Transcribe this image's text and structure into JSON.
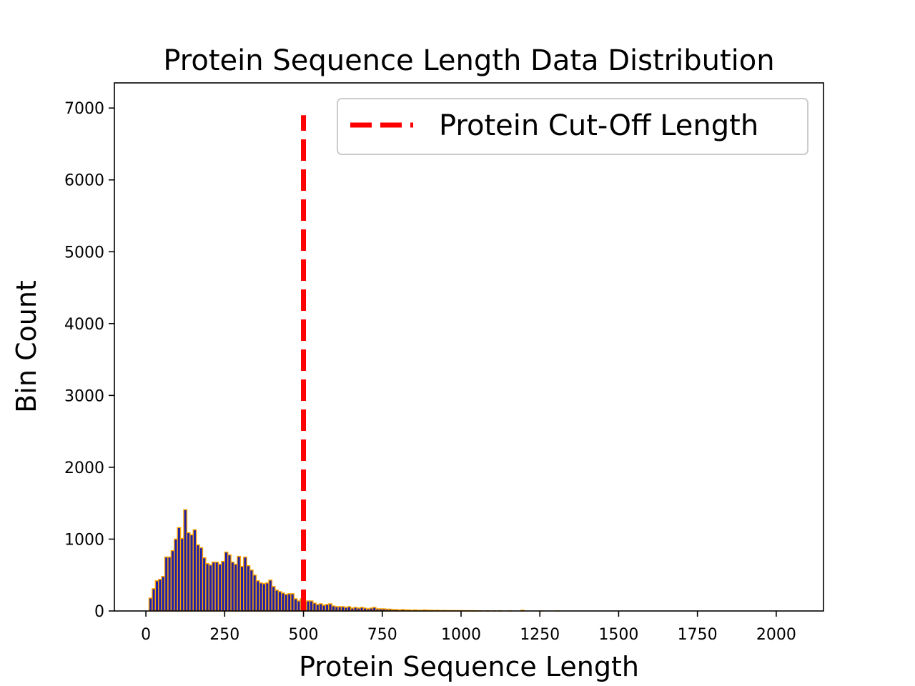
{
  "chart_data": {
    "type": "bar",
    "title": "Protein Sequence Length Data Distribution",
    "xlabel": "Protein Sequence Length",
    "ylabel": "Bin Count",
    "xlim": [
      -100,
      2150
    ],
    "ylim": [
      0,
      7350
    ],
    "xticks": [
      0,
      250,
      500,
      750,
      1000,
      1250,
      1500,
      1750,
      2000
    ],
    "yticks": [
      0,
      1000,
      2000,
      3000,
      4000,
      5000,
      6000,
      7000
    ],
    "bin_width": 10,
    "bins": [
      {
        "x": 10,
        "count": 180
      },
      {
        "x": 20,
        "count": 310
      },
      {
        "x": 30,
        "count": 420
      },
      {
        "x": 40,
        "count": 440
      },
      {
        "x": 50,
        "count": 480
      },
      {
        "x": 60,
        "count": 750
      },
      {
        "x": 70,
        "count": 750
      },
      {
        "x": 80,
        "count": 840
      },
      {
        "x": 90,
        "count": 1000
      },
      {
        "x": 100,
        "count": 1160
      },
      {
        "x": 110,
        "count": 1010
      },
      {
        "x": 120,
        "count": 1410
      },
      {
        "x": 130,
        "count": 1090
      },
      {
        "x": 140,
        "count": 1060
      },
      {
        "x": 150,
        "count": 1130
      },
      {
        "x": 160,
        "count": 920
      },
      {
        "x": 170,
        "count": 880
      },
      {
        "x": 180,
        "count": 740
      },
      {
        "x": 190,
        "count": 660
      },
      {
        "x": 200,
        "count": 640
      },
      {
        "x": 210,
        "count": 680
      },
      {
        "x": 220,
        "count": 680
      },
      {
        "x": 230,
        "count": 650
      },
      {
        "x": 240,
        "count": 690
      },
      {
        "x": 250,
        "count": 820
      },
      {
        "x": 260,
        "count": 780
      },
      {
        "x": 270,
        "count": 680
      },
      {
        "x": 280,
        "count": 650
      },
      {
        "x": 290,
        "count": 760
      },
      {
        "x": 300,
        "count": 620
      },
      {
        "x": 310,
        "count": 750
      },
      {
        "x": 320,
        "count": 630
      },
      {
        "x": 330,
        "count": 570
      },
      {
        "x": 340,
        "count": 500
      },
      {
        "x": 350,
        "count": 420
      },
      {
        "x": 360,
        "count": 390
      },
      {
        "x": 370,
        "count": 380
      },
      {
        "x": 380,
        "count": 390
      },
      {
        "x": 390,
        "count": 430
      },
      {
        "x": 400,
        "count": 340
      },
      {
        "x": 410,
        "count": 290
      },
      {
        "x": 420,
        "count": 270
      },
      {
        "x": 430,
        "count": 250
      },
      {
        "x": 440,
        "count": 230
      },
      {
        "x": 450,
        "count": 240
      },
      {
        "x": 460,
        "count": 240
      },
      {
        "x": 470,
        "count": 170
      },
      {
        "x": 480,
        "count": 140
      },
      {
        "x": 490,
        "count": 170
      },
      {
        "x": 500,
        "count": 120
      },
      {
        "x": 510,
        "count": 140
      },
      {
        "x": 520,
        "count": 140
      },
      {
        "x": 530,
        "count": 110
      },
      {
        "x": 540,
        "count": 90
      },
      {
        "x": 550,
        "count": 100
      },
      {
        "x": 560,
        "count": 80
      },
      {
        "x": 570,
        "count": 90
      },
      {
        "x": 580,
        "count": 100
      },
      {
        "x": 590,
        "count": 70
      },
      {
        "x": 600,
        "count": 60
      },
      {
        "x": 610,
        "count": 60
      },
      {
        "x": 620,
        "count": 60
      },
      {
        "x": 630,
        "count": 50
      },
      {
        "x": 640,
        "count": 60
      },
      {
        "x": 650,
        "count": 40
      },
      {
        "x": 660,
        "count": 50
      },
      {
        "x": 670,
        "count": 40
      },
      {
        "x": 680,
        "count": 50
      },
      {
        "x": 690,
        "count": 40
      },
      {
        "x": 700,
        "count": 30
      },
      {
        "x": 710,
        "count": 40
      },
      {
        "x": 720,
        "count": 50
      },
      {
        "x": 730,
        "count": 30
      },
      {
        "x": 740,
        "count": 30
      },
      {
        "x": 750,
        "count": 30
      },
      {
        "x": 760,
        "count": 25
      },
      {
        "x": 770,
        "count": 25
      },
      {
        "x": 780,
        "count": 20
      },
      {
        "x": 790,
        "count": 20
      },
      {
        "x": 800,
        "count": 15
      },
      {
        "x": 810,
        "count": 20
      },
      {
        "x": 820,
        "count": 15
      },
      {
        "x": 830,
        "count": 15
      },
      {
        "x": 840,
        "count": 10
      },
      {
        "x": 850,
        "count": 15
      },
      {
        "x": 860,
        "count": 10
      },
      {
        "x": 870,
        "count": 10
      },
      {
        "x": 880,
        "count": 15
      },
      {
        "x": 890,
        "count": 10
      },
      {
        "x": 900,
        "count": 10
      },
      {
        "x": 910,
        "count": 8
      },
      {
        "x": 920,
        "count": 10
      },
      {
        "x": 930,
        "count": 6
      },
      {
        "x": 940,
        "count": 8
      },
      {
        "x": 950,
        "count": 6
      },
      {
        "x": 960,
        "count": 6
      },
      {
        "x": 970,
        "count": 5
      },
      {
        "x": 980,
        "count": 6
      },
      {
        "x": 990,
        "count": 5
      },
      {
        "x": 1000,
        "count": 5
      },
      {
        "x": 1010,
        "count": 4
      },
      {
        "x": 1020,
        "count": 4
      },
      {
        "x": 1030,
        "count": 5
      },
      {
        "x": 1040,
        "count": 3
      },
      {
        "x": 1050,
        "count": 3
      },
      {
        "x": 1060,
        "count": 2
      },
      {
        "x": 1080,
        "count": 2
      },
      {
        "x": 1100,
        "count": 2
      },
      {
        "x": 1120,
        "count": 2
      },
      {
        "x": 1150,
        "count": 2
      },
      {
        "x": 1190,
        "count": 10
      },
      {
        "x": 1250,
        "count": 1
      },
      {
        "x": 1300,
        "count": 1
      }
    ],
    "cutoff_line": {
      "x": 500,
      "label": "Protein Cut-Off Length",
      "color": "#ff0000",
      "style": "dashed",
      "ymax": 6900
    },
    "colors": {
      "bar_fill": "#1f1fa8",
      "bar_edge": "#ffa500"
    },
    "legend": {
      "placement": "top-right"
    },
    "grid": false
  }
}
